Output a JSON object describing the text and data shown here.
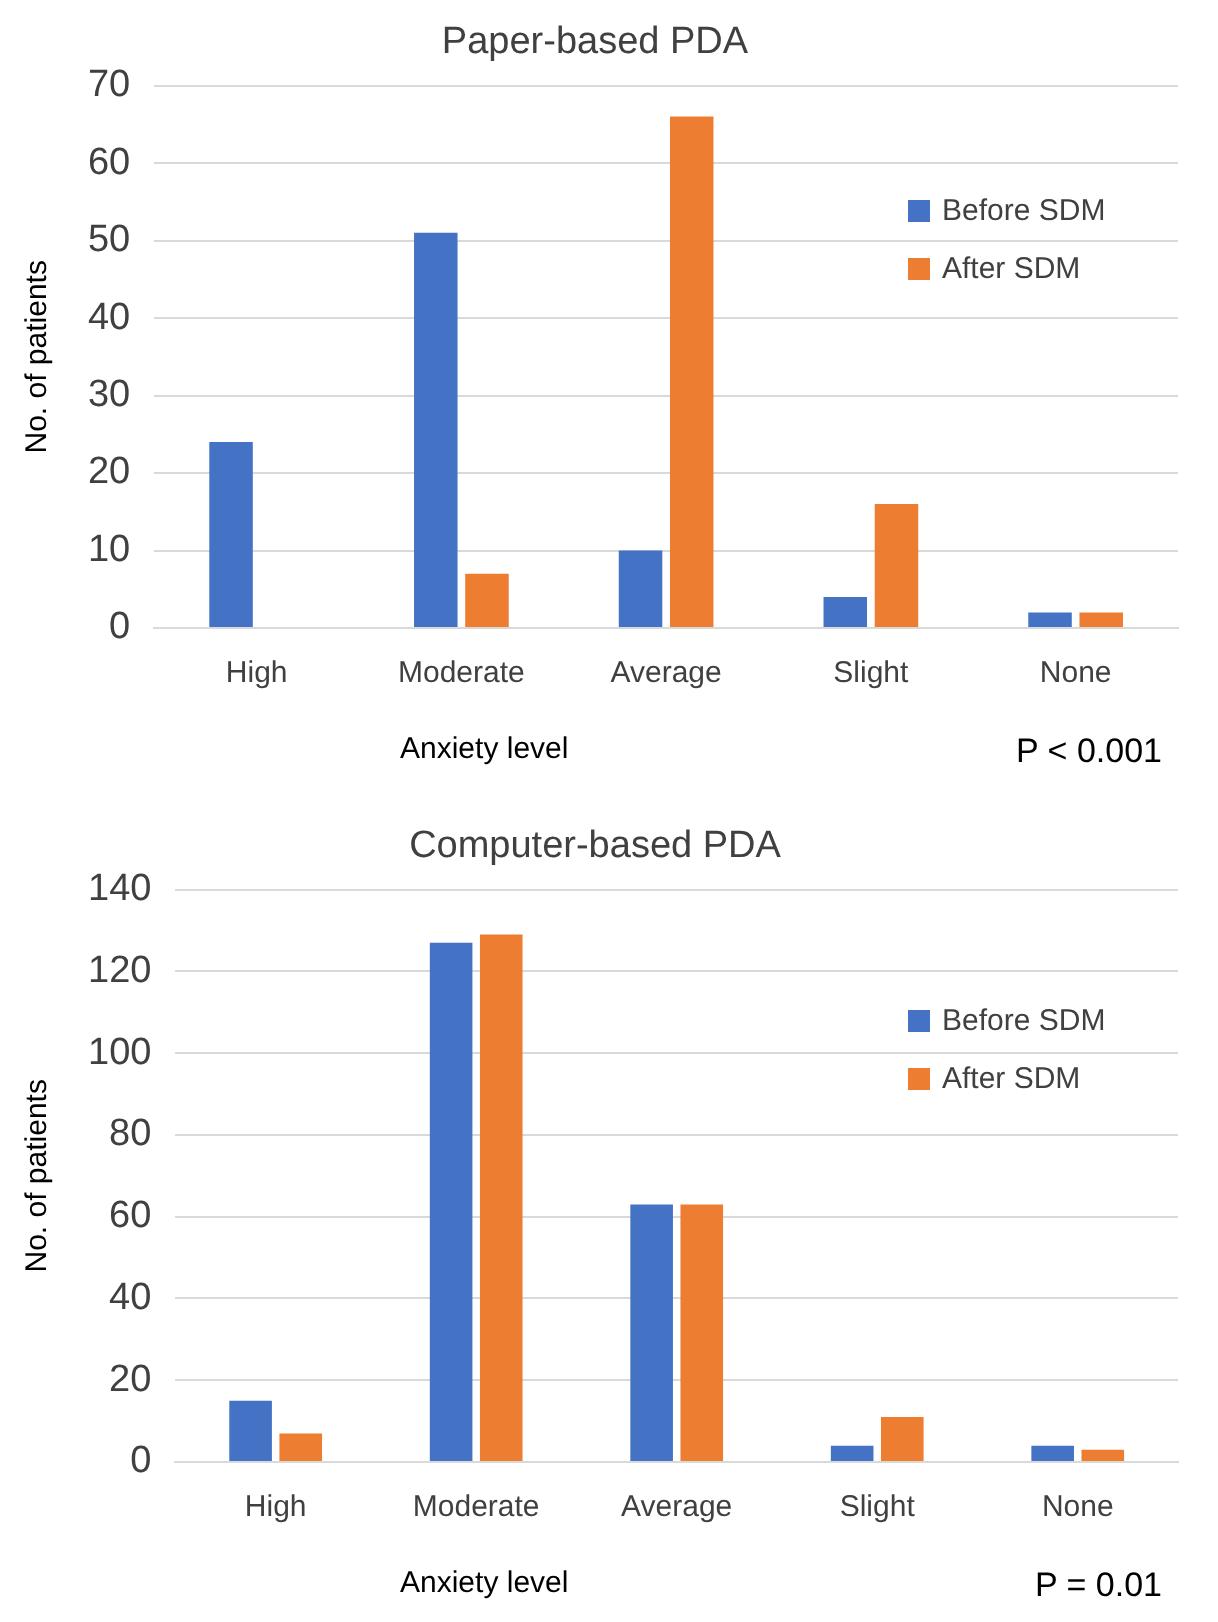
{
  "chart_data": [
    {
      "type": "bar",
      "title": "Paper-based PDA",
      "xlabel": "Anxiety level",
      "ylabel": "No. of patients",
      "categories": [
        "High",
        "Moderate",
        "Average",
        "Slight",
        "None"
      ],
      "series": [
        {
          "name": "Before SDM",
          "color": "#4472c4",
          "values": [
            24,
            51,
            10,
            4,
            2
          ]
        },
        {
          "name": "After SDM",
          "color": "#ed7d31",
          "values": [
            0,
            7,
            66,
            16,
            2
          ]
        }
      ],
      "ylim": [
        0,
        70
      ],
      "yticks": [
        0,
        10,
        20,
        30,
        40,
        50,
        60,
        70
      ],
      "grid": "y",
      "legend": "top right",
      "annotations": [
        "P < 0.001"
      ]
    },
    {
      "type": "bar",
      "title": "Computer-based PDA",
      "xlabel": "Anxiety level",
      "ylabel": "No. of patients",
      "categories": [
        "High",
        "Moderate",
        "Average",
        "Slight",
        "None"
      ],
      "series": [
        {
          "name": "Before SDM",
          "color": "#4472c4",
          "values": [
            15,
            127,
            63,
            4,
            4
          ]
        },
        {
          "name": "After SDM",
          "color": "#ed7d31",
          "values": [
            7,
            129,
            63,
            11,
            3
          ]
        }
      ],
      "ylim": [
        0,
        140
      ],
      "yticks": [
        0,
        20,
        40,
        60,
        80,
        100,
        120,
        140
      ],
      "grid": "y",
      "legend": "top right",
      "annotations": [
        "P = 0.01"
      ]
    }
  ]
}
